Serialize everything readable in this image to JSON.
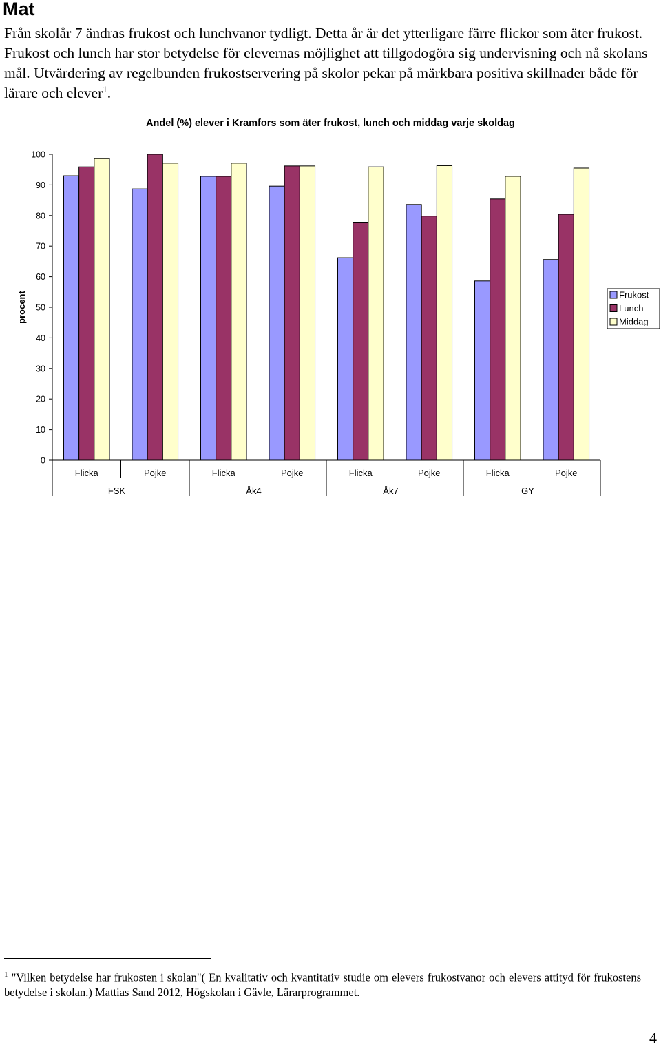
{
  "heading": "Mat",
  "intro": {
    "text": "Från skolår 7 ändras frukost och lunchvanor tydligt. Detta år är det ytterligare färre flickor som äter frukost. Frukost och lunch har stor betydelse för elevernas möjlighet att tillgodogöra sig undervisning och nå skolans mål. Utvärdering av regelbunden frukostservering på skolor pekar på märkbara positiva skillnader både för lärare och elever",
    "footnote_ref": "1",
    "end": "."
  },
  "chart_data": {
    "type": "bar",
    "title": "Andel (%) elever i Kramfors som äter frukost, lunch och middag varje skoldag",
    "ylabel": "procent",
    "xlabel": "",
    "ylim": [
      0,
      100
    ],
    "yticks": [
      "0",
      "10",
      "20",
      "30",
      "40",
      "50",
      "60",
      "70",
      "80",
      "90",
      "100"
    ],
    "categories": [
      "Flicka",
      "Pojke",
      "Flicka",
      "Pojke",
      "Flicka",
      "Pojke",
      "Flicka",
      "Pojke"
    ],
    "groups": [
      "FSK",
      "Åk4",
      "Åk7",
      "GY"
    ],
    "series": [
      {
        "name": "Frukost",
        "color": "#9999ff",
        "values": [
          93,
          88.7,
          92.8,
          89.6,
          66.2,
          83.6,
          58.6,
          65.6
        ]
      },
      {
        "name": "Lunch",
        "color": "#993366",
        "values": [
          95.9,
          100,
          92.8,
          96.2,
          77.6,
          79.8,
          85.4,
          80.4
        ]
      },
      {
        "name": "Middag",
        "color": "#ffffcc",
        "values": [
          98.6,
          97.1,
          97.1,
          96.2,
          95.9,
          96.3,
          92.8,
          95.5
        ]
      }
    ],
    "legend_position": "right",
    "grid": false
  },
  "footnote": {
    "number": "1",
    "text": "\"Vilken betydelse har frukosten i skolan\"( En kvalitativ och kvantitativ studie om elevers frukostvanor och elevers attityd för frukostens betydelse i skolan.) Mattias Sand 2012, Högskolan i Gävle, Lärarprogrammet."
  },
  "page_number": "4"
}
